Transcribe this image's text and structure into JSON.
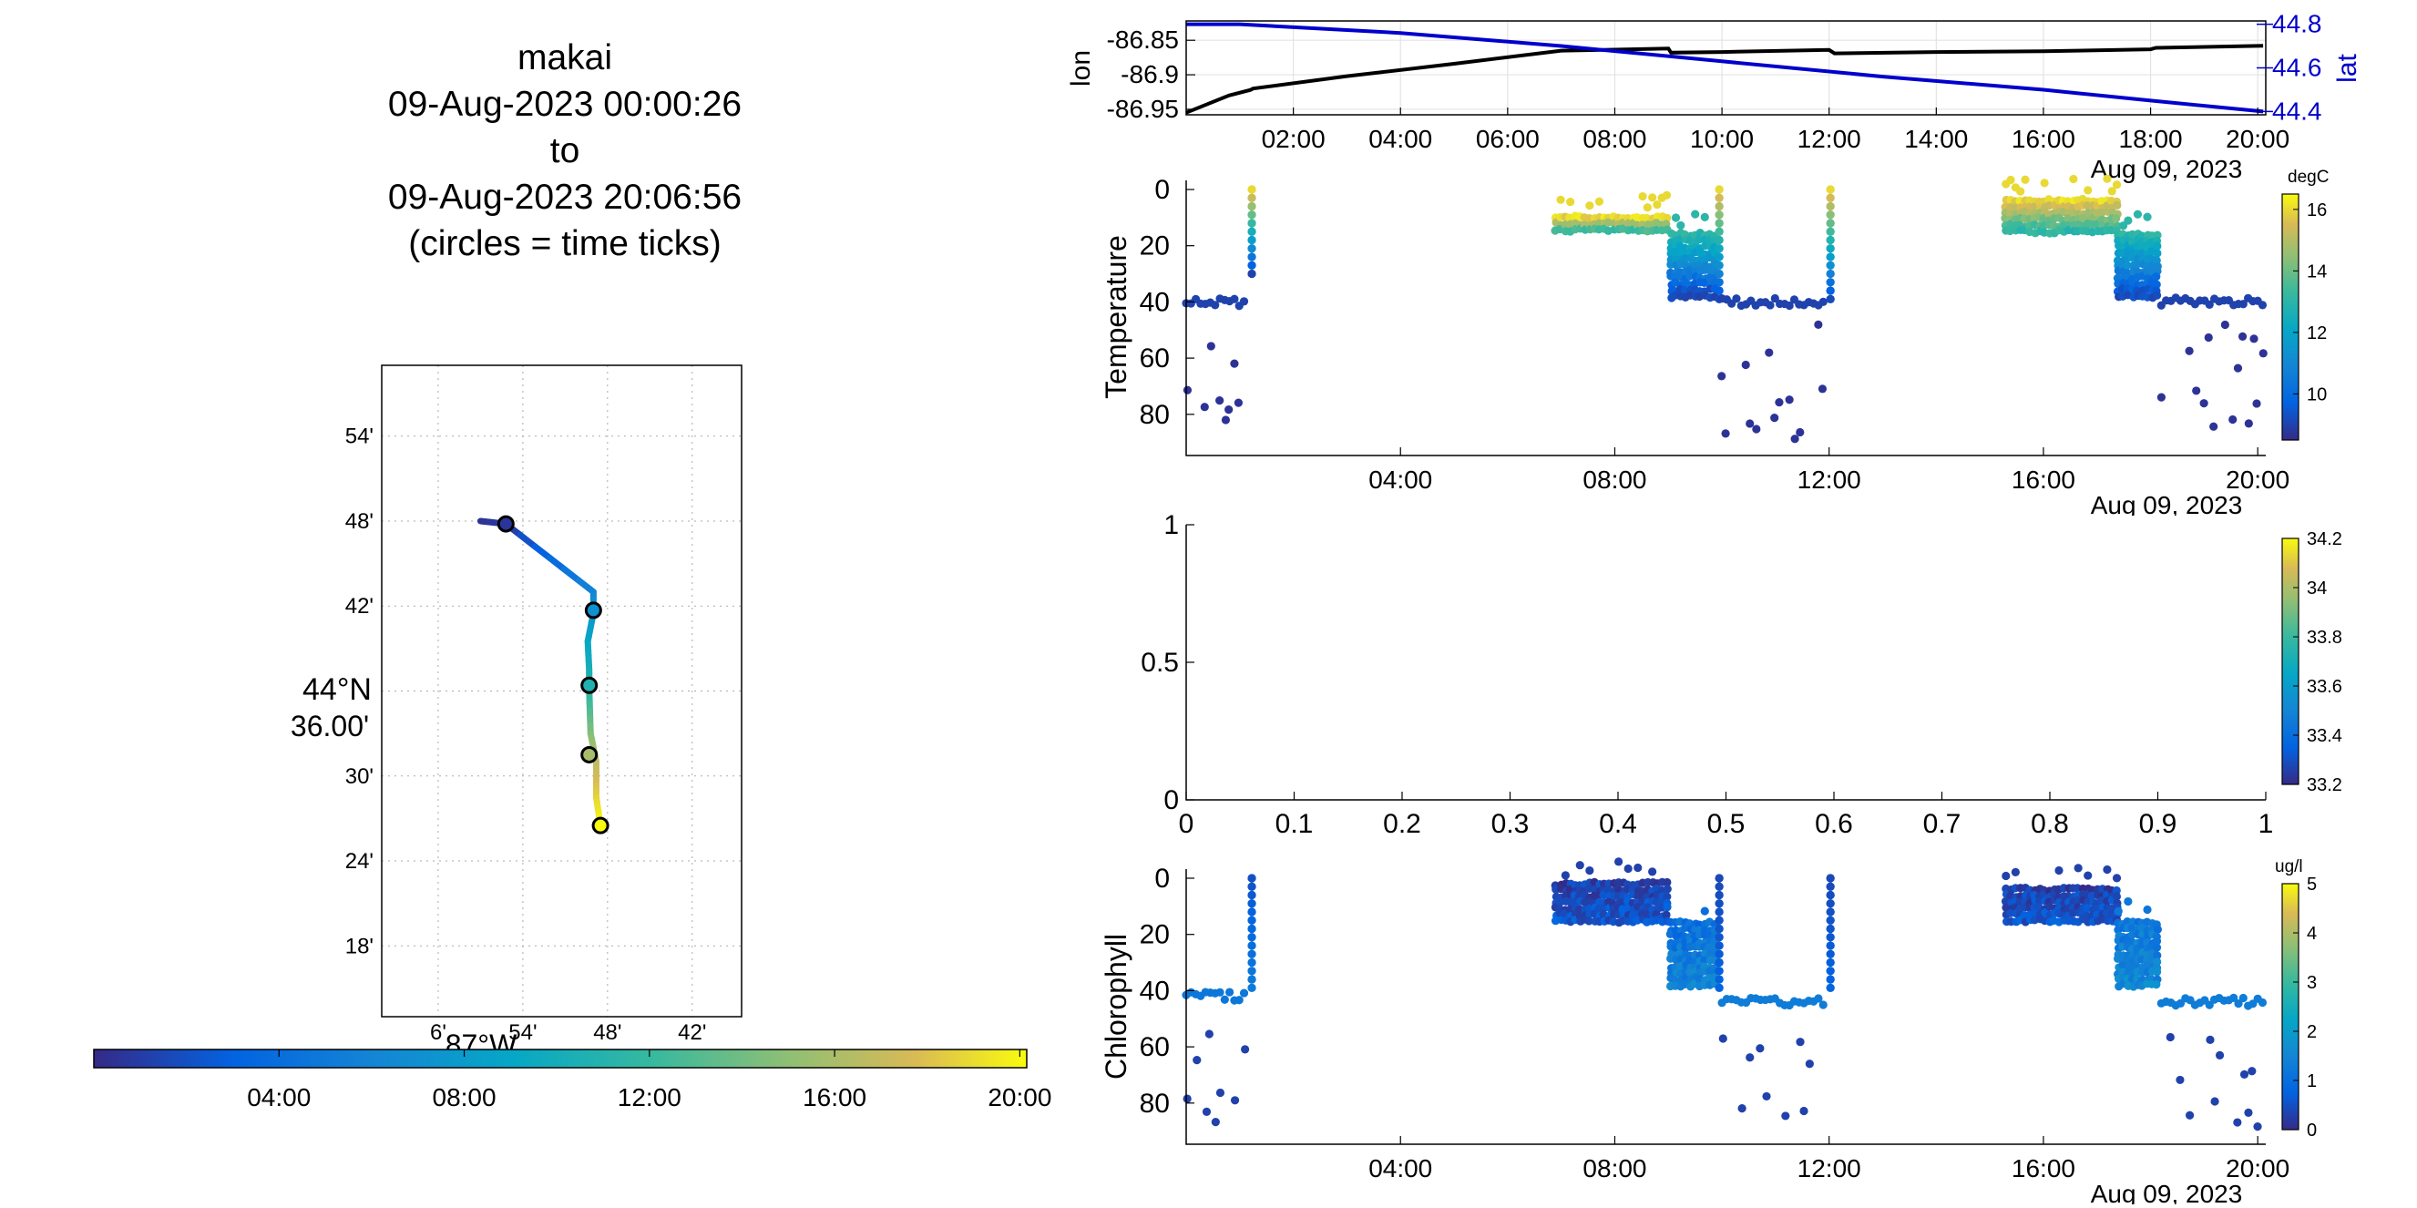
{
  "title": {
    "lines": [
      "makai",
      "09-Aug-2023 00:00:26",
      "to",
      "09-Aug-2023 20:06:56",
      "(circles = time ticks)"
    ]
  },
  "chart_data": [
    {
      "name": "track-map",
      "type": "scatter",
      "lat_ticks": [
        "54'",
        "48'",
        "42'",
        "30'",
        "24'",
        "18'"
      ],
      "lat_center_label": [
        "44°N",
        "36.00'"
      ],
      "lon_ticks": [
        "6'",
        "54'",
        "48'",
        "42'"
      ],
      "lon_center_label": "87°W",
      "track": [
        {
          "lon_min": 57.0,
          "lat_min": 48.0,
          "t": 0.02
        },
        {
          "lon_min": 55.2,
          "lat_min": 47.8,
          "t": 0.04
        },
        {
          "lon_min": 49.0,
          "lat_min": 43.0,
          "t": 0.3
        },
        {
          "lon_min": 49.0,
          "lat_min": 41.5,
          "t": 0.37
        },
        {
          "lon_min": 49.4,
          "lat_min": 39.5,
          "t": 0.44
        },
        {
          "lon_min": 49.3,
          "lat_min": 37.5,
          "t": 0.5
        },
        {
          "lon_min": 49.3,
          "lat_min": 36.2,
          "t": 0.55
        },
        {
          "lon_min": 49.2,
          "lat_min": 33.0,
          "t": 0.72
        },
        {
          "lon_min": 48.8,
          "lat_min": 31.0,
          "t": 0.82
        },
        {
          "lon_min": 48.8,
          "lat_min": 28.5,
          "t": 0.92
        },
        {
          "lon_min": 48.5,
          "lat_min": 26.5,
          "t": 1.0
        }
      ],
      "time_ticks": [
        {
          "lon_min": 55.2,
          "lat_min": 47.8,
          "t": 0.03
        },
        {
          "lon_min": 49.0,
          "lat_min": 41.7,
          "t": 0.35
        },
        {
          "lon_min": 49.3,
          "lat_min": 36.4,
          "t": 0.53
        },
        {
          "lon_min": 49.3,
          "lat_min": 31.5,
          "t": 0.79
        },
        {
          "lon_min": 48.5,
          "lat_min": 26.5,
          "t": 1.0
        }
      ]
    },
    {
      "name": "time-colorbar",
      "type": "heatmap",
      "tick_labels": [
        "04:00",
        "08:00",
        "12:00",
        "16:00",
        "20:00"
      ]
    },
    {
      "name": "lon-lat",
      "type": "line",
      "ylabel_left": "lon",
      "ylabel_right": "lat",
      "left_ticks": [
        "-86.85",
        "-86.9",
        "-86.95"
      ],
      "right_ticks": [
        "44.8",
        "44.6",
        "44.4"
      ],
      "x_ticks": [
        "02:00",
        "04:00",
        "06:00",
        "08:00",
        "10:00",
        "12:00",
        "14:00",
        "16:00",
        "18:00",
        "20:00"
      ],
      "x_date": "Aug 09, 2023",
      "series": [
        {
          "name": "lon",
          "color": "#000000",
          "x": [
            0,
            0.8,
            1.2,
            1.25,
            3,
            5,
            7,
            9,
            9.05,
            10,
            12,
            12.1,
            14,
            16,
            18,
            18.1,
            20.1
          ],
          "y": [
            -86.955,
            -86.93,
            -86.922,
            -86.92,
            -86.902,
            -86.884,
            -86.865,
            -86.862,
            -86.868,
            -86.867,
            -86.864,
            -86.869,
            -86.867,
            -86.866,
            -86.863,
            -86.861,
            -86.858
          ]
        },
        {
          "name": "lat",
          "color": "#0000cc",
          "x": [
            0,
            1,
            4,
            7,
            10,
            13,
            16,
            18,
            20.1
          ],
          "y": [
            44.8,
            44.8,
            44.76,
            44.7,
            44.63,
            44.56,
            44.5,
            44.45,
            44.4
          ]
        }
      ]
    },
    {
      "name": "temperature",
      "type": "scatter",
      "ylabel": "Temperature",
      "colorbar_unit": "degC",
      "colorbar_ticks": [
        "16",
        "14",
        "12",
        "10"
      ],
      "y_ticks": [
        "0",
        "20",
        "40",
        "60",
        "80"
      ],
      "x_ticks": [
        "04:00",
        "08:00",
        "12:00",
        "16:00",
        "20:00"
      ],
      "x_date": "Aug 09, 2023",
      "clim": [
        8.5,
        16.5
      ],
      "segments": [
        {
          "t0": 0.0,
          "t1": 1.15,
          "kind": "deep",
          "level": 40,
          "floor": 85,
          "tsurf": 9,
          "tdeep": 8.7
        },
        {
          "t0": 1.15,
          "t1": 1.3,
          "kind": "prof",
          "top": 0,
          "bot": 30,
          "tsurf": 16,
          "tdeep": 9
        },
        {
          "t0": 6.9,
          "t1": 9.05,
          "kind": "layer",
          "top": 10,
          "bot": 16,
          "tsurf": 16,
          "tdeep": 12.5
        },
        {
          "t0": 9.05,
          "t1": 9.9,
          "kind": "layer",
          "top": 16,
          "bot": 40,
          "tsurf": 13,
          "tdeep": 8.8
        },
        {
          "t0": 9.9,
          "t1": 10.0,
          "kind": "prof",
          "top": 0,
          "bot": 40,
          "tsurf": 16,
          "tdeep": 9
        },
        {
          "t0": 10.0,
          "t1": 11.95,
          "kind": "deep",
          "level": 40,
          "floor": 90,
          "tsurf": 9,
          "tdeep": 8.7
        },
        {
          "t0": 11.95,
          "t1": 12.1,
          "kind": "prof",
          "top": 0,
          "bot": 40,
          "tsurf": 16,
          "tdeep": 9
        },
        {
          "t0": 15.3,
          "t1": 17.4,
          "kind": "layer",
          "top": 4,
          "bot": 17,
          "tsurf": 16,
          "tdeep": 12.5
        },
        {
          "t0": 17.4,
          "t1": 18.2,
          "kind": "layer",
          "top": 16,
          "bot": 40,
          "tsurf": 13,
          "tdeep": 8.8
        },
        {
          "t0": 18.2,
          "t1": 20.1,
          "kind": "deep",
          "level": 40,
          "floor": 90,
          "tsurf": 9,
          "tdeep": 8.7
        }
      ]
    },
    {
      "name": "salinity",
      "type": "scatter",
      "y_ticks": [
        "0",
        "0.5",
        "1"
      ],
      "x_ticks": [
        "0",
        "0.1",
        "0.2",
        "0.3",
        "0.4",
        "0.5",
        "0.6",
        "0.7",
        "0.8",
        "0.9",
        "1"
      ],
      "colorbar_ticks": [
        "34.2",
        "34",
        "33.8",
        "33.6",
        "33.4",
        "33.2"
      ],
      "xlim": [
        0,
        1
      ],
      "ylim": [
        0,
        1
      ]
    },
    {
      "name": "chlorophyll",
      "type": "scatter",
      "ylabel": "Chlorophyll",
      "colorbar_unit": "ug/l",
      "colorbar_ticks": [
        "5",
        "4",
        "3",
        "2",
        "1",
        "0"
      ],
      "y_ticks": [
        "0",
        "20",
        "40",
        "60",
        "80"
      ],
      "x_ticks": [
        "04:00",
        "08:00",
        "12:00",
        "16:00",
        "20:00"
      ],
      "x_date": "Aug 09, 2023",
      "clim": [
        0,
        5
      ],
      "segments": [
        {
          "t0": 0.0,
          "t1": 1.15,
          "kind": "deep",
          "level": 42,
          "floor": 88,
          "tsurf": 1.2,
          "tdeep": 0.3
        },
        {
          "t0": 1.15,
          "t1": 1.3,
          "kind": "prof",
          "top": 0,
          "bot": 40,
          "tsurf": 0.5,
          "tdeep": 1.3
        },
        {
          "t0": 6.9,
          "t1": 9.05,
          "kind": "layer",
          "top": 2,
          "bot": 16,
          "tsurf": 0.3,
          "tdeep": 0.6
        },
        {
          "t0": 9.05,
          "t1": 9.9,
          "kind": "layer",
          "top": 16,
          "bot": 40,
          "tsurf": 1.0,
          "tdeep": 1.5
        },
        {
          "t0": 9.9,
          "t1": 10.0,
          "kind": "prof",
          "top": 0,
          "bot": 40,
          "tsurf": 0.4,
          "tdeep": 0.8
        },
        {
          "t0": 10.0,
          "t1": 11.95,
          "kind": "deep",
          "level": 44,
          "floor": 90,
          "tsurf": 1.3,
          "tdeep": 0.3
        },
        {
          "t0": 11.95,
          "t1": 12.1,
          "kind": "prof",
          "top": 0,
          "bot": 40,
          "tsurf": 0.4,
          "tdeep": 0.8
        },
        {
          "t0": 15.3,
          "t1": 17.4,
          "kind": "layer",
          "top": 4,
          "bot": 16,
          "tsurf": 0.3,
          "tdeep": 0.6
        },
        {
          "t0": 17.4,
          "t1": 18.2,
          "kind": "layer",
          "top": 16,
          "bot": 40,
          "tsurf": 1.2,
          "tdeep": 1.6
        },
        {
          "t0": 18.2,
          "t1": 20.1,
          "kind": "deep",
          "level": 44,
          "floor": 90,
          "tsurf": 1.3,
          "tdeep": 0.3
        }
      ]
    }
  ]
}
